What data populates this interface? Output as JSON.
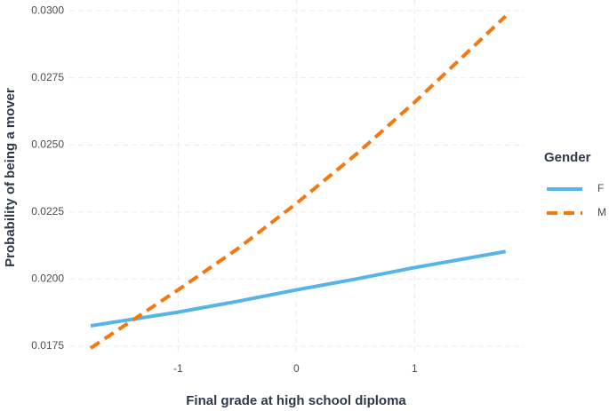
{
  "chart_data": {
    "type": "line",
    "x_label": "Final grade at high school diploma",
    "y_label": "Probability of being a mover",
    "x": [
      -1.74,
      -1,
      -0.5,
      0,
      0.5,
      1,
      1.77
    ],
    "series": [
      {
        "name": "F",
        "color": "#56b4e9",
        "dash": "solid",
        "values": [
          0.01826,
          0.01877,
          0.01917,
          0.0196,
          0.02,
          0.02043,
          0.02103
        ]
      },
      {
        "name": "M",
        "color": "#f5770f",
        "dash": "dashed",
        "values": [
          0.01743,
          0.0196,
          0.02112,
          0.02282,
          0.02463,
          0.02659,
          0.0298
        ]
      }
    ],
    "legend_title": "Gender",
    "legend": "right",
    "xlim": [
      -1.92,
      1.93
    ],
    "ylim": [
      0.01717,
      0.0304
    ],
    "xticks": [
      -1,
      0,
      1
    ],
    "yticks": [
      {
        "value": 0.0175,
        "label": "0.0175"
      },
      {
        "value": 0.02,
        "label": "0.0200"
      },
      {
        "value": 0.0225,
        "label": "0.0225"
      },
      {
        "value": 0.025,
        "label": "0.0250"
      },
      {
        "value": 0.0275,
        "label": "0.0275"
      },
      {
        "value": 0.03,
        "label": "0.0300"
      }
    ],
    "grid": true
  }
}
